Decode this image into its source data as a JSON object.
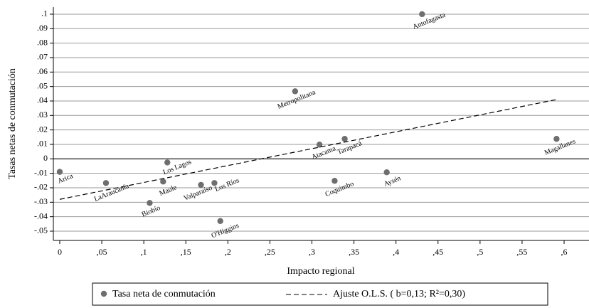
{
  "chart_data": {
    "type": "scatter",
    "x_label": "Impacto regional",
    "y_label": "Tasas netas de conmutación",
    "xlim": [
      -0.0076,
      0.6296
    ],
    "ylim": [
      -0.0564,
      0.1049
    ],
    "xticks": [
      {
        "value": 0,
        "label": "0"
      },
      {
        "value": 0.05,
        "label": ",05"
      },
      {
        "value": 0.1,
        "label": ",1"
      },
      {
        "value": 0.15,
        "label": ",15"
      },
      {
        "value": 0.2,
        "label": ",2"
      },
      {
        "value": 0.25,
        "label": ",25"
      },
      {
        "value": 0.3,
        "label": ",3"
      },
      {
        "value": 0.35,
        "label": ",35"
      },
      {
        "value": 0.4,
        "label": ",4"
      },
      {
        "value": 0.45,
        "label": ",45"
      },
      {
        "value": 0.5,
        "label": ",5"
      },
      {
        "value": 0.55,
        "label": ",55"
      },
      {
        "value": 0.6,
        "label": ",6"
      }
    ],
    "yticks": [
      {
        "value": 0.1,
        "label": ".1"
      },
      {
        "value": 0.09,
        "label": ".09"
      },
      {
        "value": 0.08,
        "label": ".08"
      },
      {
        "value": 0.07,
        "label": ".07"
      },
      {
        "value": 0.06,
        "label": ".06"
      },
      {
        "value": 0.05,
        "label": ".05"
      },
      {
        "value": 0.04,
        "label": ".04"
      },
      {
        "value": 0.03,
        "label": ".03"
      },
      {
        "value": 0.02,
        "label": ".02"
      },
      {
        "value": 0.01,
        "label": ".01"
      },
      {
        "value": 0,
        "label": "0"
      },
      {
        "value": -0.01,
        "label": "-.01"
      },
      {
        "value": -0.02,
        "label": "-.02"
      },
      {
        "value": -0.03,
        "label": "-.03"
      },
      {
        "value": -0.04,
        "label": "-.04"
      },
      {
        "value": -0.05,
        "label": "-.05"
      }
    ],
    "grid": true,
    "series": [
      {
        "name": "Tasa neta de conmutación",
        "color": "#6e6e6e",
        "labels": [
          "Arica",
          "LaAraucanía",
          "Biobío",
          "Maule",
          "Los Lagos",
          "Valparaíso",
          "Los Ríos",
          "O'Higgins",
          "Metropolitana",
          "Atacama",
          "Tarapacá",
          "Coquimbo",
          "Aysén",
          "Antofagasta",
          "Magallanes"
        ],
        "x": [
          0,
          0.055,
          0.107,
          0.123,
          0.128,
          0.168,
          0.184,
          0.191,
          0.28,
          0.309,
          0.339,
          0.327,
          0.389,
          0.431,
          0.591
        ],
        "values": [
          -0.009,
          -0.0167,
          -0.0305,
          -0.0157,
          -0.0025,
          -0.018,
          -0.0167,
          -0.043,
          0.0467,
          0.0098,
          0.0138,
          -0.0152,
          -0.0093,
          0.1,
          0.0138
        ]
      },
      {
        "name": "Ajuste O.L.S. ( b=0,13;  R²=0,30)",
        "color": "#000000",
        "style": "dashed",
        "x": [
          0,
          0.591
        ],
        "values": [
          -0.028,
          0.041
        ]
      }
    ]
  }
}
